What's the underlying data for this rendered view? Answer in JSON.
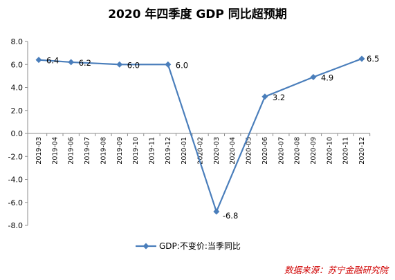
{
  "chart_data": {
    "type": "line",
    "title": "2020 年四季度 GDP 同比超预期",
    "categories": [
      "2019-03",
      "2019-04",
      "2019-06",
      "2019-07",
      "2019-08",
      "2019-09",
      "2019-10",
      "2019-11",
      "2019-12",
      "2020-01",
      "2020-02",
      "2020-03",
      "2020-04",
      "2020-05",
      "2020-06",
      "2020-07",
      "2020-08",
      "2020-09",
      "2020-10",
      "2020-11",
      "2020-12"
    ],
    "series": [
      {
        "name": "GDP:不变价:当季同比",
        "color": "#4a7ebb",
        "points": [
          {
            "category": "2019-03",
            "value": 6.4,
            "label": "6.4"
          },
          {
            "category": "2019-06",
            "value": 6.2,
            "label": "6.2"
          },
          {
            "category": "2019-09",
            "value": 6.0,
            "label": "6.0"
          },
          {
            "category": "2019-12",
            "value": 6.0,
            "label": "6.0"
          },
          {
            "category": "2020-03",
            "value": -6.8,
            "label": "-6.8"
          },
          {
            "category": "2020-06",
            "value": 3.2,
            "label": "3.2"
          },
          {
            "category": "2020-09",
            "value": 4.9,
            "label": "4.9"
          },
          {
            "category": "2020-12",
            "value": 6.5,
            "label": "6.5"
          }
        ]
      }
    ],
    "yticks": [
      "8.0",
      "6.0",
      "4.0",
      "2.0",
      "0.0",
      "-2.0",
      "-4.0",
      "-6.0",
      "-8.0"
    ],
    "ylim": [
      -8,
      8
    ],
    "grid": false,
    "legend": "bottom",
    "marker": "diamond"
  },
  "source": "数据来源：苏宁金融研究院"
}
